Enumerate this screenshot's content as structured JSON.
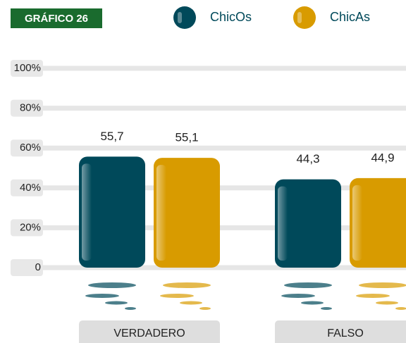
{
  "chart_data": {
    "type": "bar",
    "title": "GRÁFICO 26",
    "categories": [
      "VERDADERO",
      "FALSO"
    ],
    "series": [
      {
        "name": "ChicOs",
        "color": "#00495a",
        "values": [
          55.7,
          44.3
        ],
        "value_labels": [
          "55,7",
          "44,3"
        ]
      },
      {
        "name": "ChicAs",
        "color": "#d89b00",
        "values": [
          55.1,
          44.9
        ],
        "value_labels": [
          "55,1",
          "44,9"
        ]
      }
    ],
    "ylim": [
      0,
      100
    ],
    "yticks": [
      {
        "value": 0,
        "label": "0"
      },
      {
        "value": 20,
        "label": "20%"
      },
      {
        "value": 40,
        "label": "40%"
      },
      {
        "value": 60,
        "label": "60%"
      },
      {
        "value": 80,
        "label": "80%"
      },
      {
        "value": 100,
        "label": "100%"
      }
    ],
    "grid": true
  }
}
